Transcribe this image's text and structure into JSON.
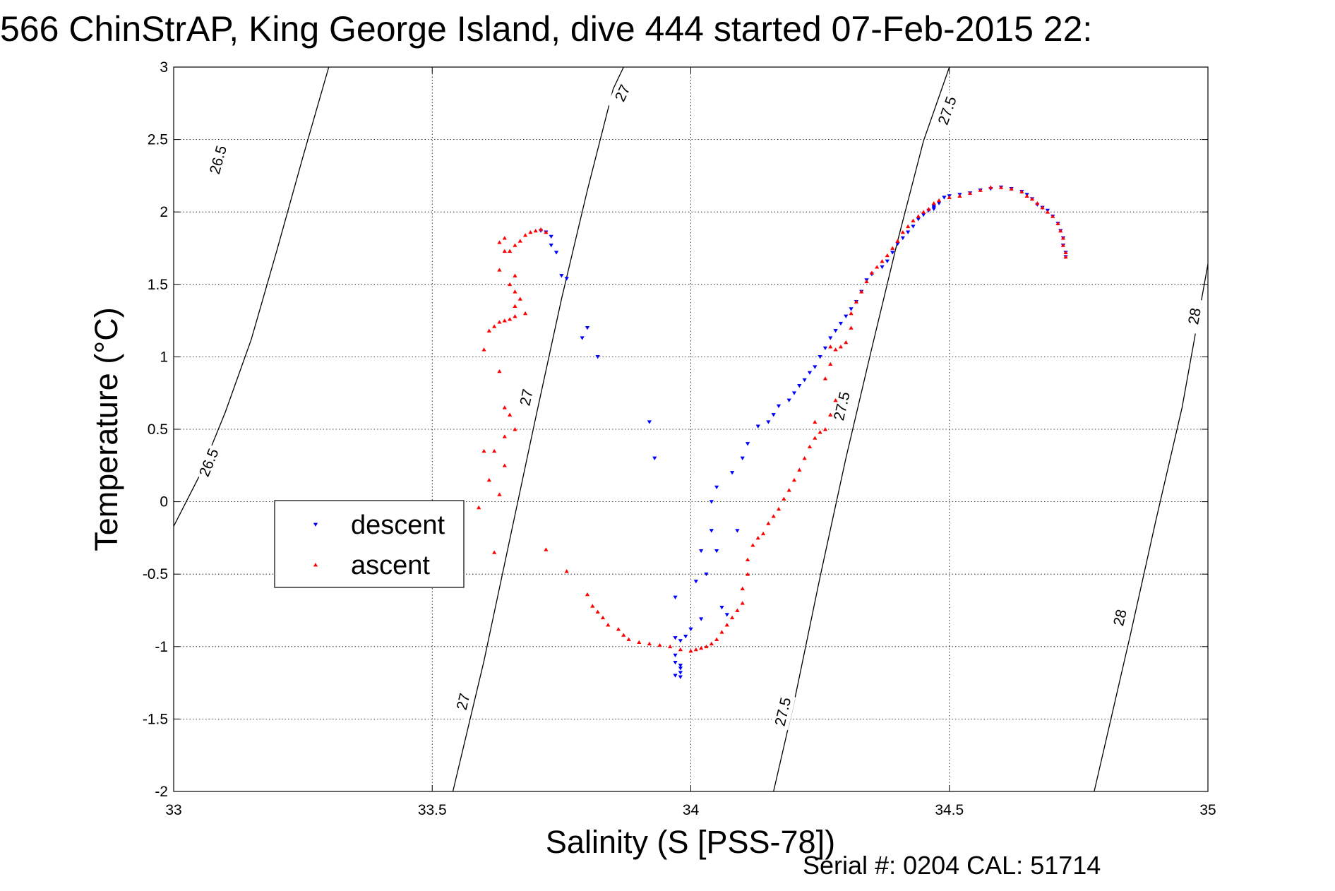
{
  "chart_data": {
    "type": "scatter",
    "title": "566 ChinStrAP, King George Island, dive 444 started 07-Feb-2015 22:",
    "xlabel": "Salinity (S [PSS-78])",
    "ylabel": "Temperature (°C)",
    "footer": "Serial #: 0204  CAL: 51714",
    "xlim": [
      33,
      35
    ],
    "ylim": [
      -2,
      3
    ],
    "grid": true,
    "legend_position": "left-center",
    "x_ticks": [
      {
        "value": 33,
        "label": "33"
      },
      {
        "value": 33.5,
        "label": "33.5"
      },
      {
        "value": 34,
        "label": "34"
      },
      {
        "value": 34.5,
        "label": "34.5"
      },
      {
        "value": 35,
        "label": "35"
      }
    ],
    "y_ticks": [
      {
        "value": 3,
        "label": "3"
      },
      {
        "value": 2.5,
        "label": "2.5"
      },
      {
        "value": 2,
        "label": "2"
      },
      {
        "value": 1.5,
        "label": "1.5"
      },
      {
        "value": 1,
        "label": "1"
      },
      {
        "value": 0.5,
        "label": "0.5"
      },
      {
        "value": 0,
        "label": "0"
      },
      {
        "value": -0.5,
        "label": "-0.5"
      },
      {
        "value": -1,
        "label": "-1"
      },
      {
        "value": -1.5,
        "label": "-1.5"
      },
      {
        "value": -2,
        "label": "-2"
      }
    ],
    "isopycnals": [
      {
        "level": "26.5",
        "points": [
          [
            33.0,
            -0.17
          ],
          [
            33.05,
            0.18
          ],
          [
            33.1,
            0.62
          ],
          [
            33.15,
            1.12
          ],
          [
            33.2,
            1.74
          ],
          [
            33.25,
            2.38
          ],
          [
            33.3,
            3.0
          ]
        ],
        "labels": [
          {
            "x": 33.086,
            "y": 2.36
          },
          {
            "x": 33.068,
            "y": 0.27
          }
        ]
      },
      {
        "level": "27",
        "points": [
          [
            33.54,
            -2.0
          ],
          [
            33.6,
            -1.1
          ],
          [
            33.65,
            -0.26
          ],
          [
            33.7,
            0.58
          ],
          [
            33.75,
            1.4
          ],
          [
            33.8,
            2.15
          ],
          [
            33.85,
            2.85
          ],
          [
            33.87,
            3.0
          ]
        ],
        "labels": [
          {
            "x": 33.868,
            "y": 2.82
          },
          {
            "x": 33.682,
            "y": 0.72
          },
          {
            "x": 33.56,
            "y": -1.38
          }
        ]
      },
      {
        "level": "27.5",
        "points": [
          [
            34.16,
            -2.0
          ],
          [
            34.2,
            -1.38
          ],
          [
            34.25,
            -0.52
          ],
          [
            34.3,
            0.3
          ],
          [
            34.35,
            1.06
          ],
          [
            34.4,
            1.8
          ],
          [
            34.45,
            2.49
          ],
          [
            34.5,
            3.0
          ]
        ],
        "labels": [
          {
            "x": 34.496,
            "y": 2.7
          },
          {
            "x": 34.292,
            "y": 0.66
          },
          {
            "x": 34.178,
            "y": -1.45
          }
        ]
      },
      {
        "level": "28",
        "points": [
          [
            34.78,
            -2.0
          ],
          [
            34.85,
            -0.92
          ],
          [
            34.9,
            -0.12
          ],
          [
            34.95,
            0.65
          ],
          [
            35.0,
            1.64
          ]
        ],
        "labels": [
          {
            "x": 34.974,
            "y": 1.28
          },
          {
            "x": 34.83,
            "y": -0.8
          }
        ]
      }
    ],
    "series": [
      {
        "name": "descent",
        "color": "#0000ff",
        "marker": "triangle-down",
        "points": [
          [
            33.71,
            1.87
          ],
          [
            33.72,
            1.86
          ],
          [
            33.73,
            1.83
          ],
          [
            33.73,
            1.77
          ],
          [
            33.74,
            1.72
          ],
          [
            33.75,
            1.56
          ],
          [
            33.76,
            1.54
          ],
          [
            33.8,
            1.2
          ],
          [
            33.79,
            1.13
          ],
          [
            33.82,
            1.0
          ],
          [
            33.92,
            0.55
          ],
          [
            33.93,
            0.3
          ],
          [
            33.97,
            -0.66
          ],
          [
            33.97,
            -0.94
          ],
          [
            33.98,
            -0.96
          ],
          [
            33.99,
            -0.93
          ],
          [
            33.97,
            -1.06
          ],
          [
            33.97,
            -1.11
          ],
          [
            33.98,
            -1.13
          ],
          [
            33.98,
            -1.15
          ],
          [
            33.98,
            -1.18
          ],
          [
            33.97,
            -1.2
          ],
          [
            33.98,
            -1.21
          ],
          [
            34.0,
            -0.88
          ],
          [
            34.01,
            -0.55
          ],
          [
            34.02,
            -0.81
          ],
          [
            34.03,
            -0.5
          ],
          [
            34.02,
            -0.34
          ],
          [
            34.04,
            -0.2
          ],
          [
            34.05,
            -0.34
          ],
          [
            34.04,
            -0.0
          ],
          [
            34.05,
            0.1
          ],
          [
            34.06,
            -0.73
          ],
          [
            34.07,
            -0.78
          ],
          [
            34.08,
            0.2
          ],
          [
            34.09,
            -0.2
          ],
          [
            34.1,
            0.3
          ],
          [
            34.11,
            0.4
          ],
          [
            34.13,
            0.52
          ],
          [
            34.15,
            0.55
          ],
          [
            34.16,
            0.6
          ],
          [
            34.17,
            0.66
          ],
          [
            34.19,
            0.7
          ],
          [
            34.2,
            0.75
          ],
          [
            34.21,
            0.8
          ],
          [
            34.22,
            0.84
          ],
          [
            34.23,
            0.89
          ],
          [
            34.24,
            0.93
          ],
          [
            34.25,
            1.0
          ],
          [
            34.26,
            1.06
          ],
          [
            34.27,
            1.13
          ],
          [
            34.28,
            1.18
          ],
          [
            34.29,
            1.23
          ],
          [
            34.3,
            1.28
          ],
          [
            34.31,
            1.33
          ],
          [
            34.32,
            1.38
          ],
          [
            34.33,
            1.45
          ],
          [
            34.34,
            1.53
          ],
          [
            34.35,
            1.57
          ],
          [
            34.37,
            1.62
          ],
          [
            34.38,
            1.66
          ],
          [
            34.39,
            1.72
          ],
          [
            34.4,
            1.78
          ],
          [
            34.41,
            1.82
          ],
          [
            34.42,
            1.86
          ],
          [
            34.43,
            1.9
          ],
          [
            34.44,
            1.95
          ],
          [
            34.45,
            1.98
          ],
          [
            34.46,
            2.01
          ],
          [
            34.47,
            2.03
          ],
          [
            34.47,
            2.04
          ],
          [
            34.47,
            2.02
          ],
          [
            34.48,
            2.06
          ],
          [
            34.49,
            2.1
          ],
          [
            34.5,
            2.11
          ],
          [
            34.52,
            2.12
          ],
          [
            34.54,
            2.13
          ],
          [
            34.56,
            2.15
          ],
          [
            34.58,
            2.16
          ],
          [
            34.6,
            2.17
          ],
          [
            34.62,
            2.16
          ],
          [
            34.64,
            2.14
          ],
          [
            34.65,
            2.12
          ],
          [
            34.66,
            2.09
          ],
          [
            34.67,
            2.05
          ],
          [
            34.68,
            2.03
          ],
          [
            34.69,
            2.01
          ],
          [
            34.7,
            1.97
          ],
          [
            34.71,
            1.92
          ],
          [
            34.715,
            1.87
          ],
          [
            34.72,
            1.82
          ],
          [
            34.72,
            1.77
          ],
          [
            34.725,
            1.72
          ],
          [
            34.725,
            1.69
          ]
        ]
      },
      {
        "name": "ascent",
        "color": "#ff0000",
        "marker": "triangle-up",
        "points": [
          [
            33.72,
            1.86
          ],
          [
            33.71,
            1.88
          ],
          [
            33.7,
            1.87
          ],
          [
            33.69,
            1.86
          ],
          [
            33.68,
            1.84
          ],
          [
            33.67,
            1.8
          ],
          [
            33.66,
            1.77
          ],
          [
            33.65,
            1.73
          ],
          [
            33.64,
            1.73
          ],
          [
            33.63,
            1.79
          ],
          [
            33.64,
            1.82
          ],
          [
            33.63,
            1.6
          ],
          [
            33.66,
            1.56
          ],
          [
            33.65,
            1.5
          ],
          [
            33.66,
            1.45
          ],
          [
            33.67,
            1.4
          ],
          [
            33.66,
            1.35
          ],
          [
            33.68,
            1.3
          ],
          [
            33.66,
            1.28
          ],
          [
            33.65,
            1.26
          ],
          [
            33.64,
            1.25
          ],
          [
            33.63,
            1.24
          ],
          [
            33.62,
            1.21
          ],
          [
            33.61,
            1.18
          ],
          [
            33.6,
            1.05
          ],
          [
            33.63,
            0.9
          ],
          [
            33.64,
            0.65
          ],
          [
            33.65,
            0.6
          ],
          [
            33.66,
            0.5
          ],
          [
            33.64,
            0.45
          ],
          [
            33.62,
            0.35
          ],
          [
            33.6,
            0.35
          ],
          [
            33.64,
            0.25
          ],
          [
            33.61,
            0.15
          ],
          [
            33.63,
            0.05
          ],
          [
            33.59,
            -0.04
          ],
          [
            33.62,
            -0.35
          ],
          [
            33.72,
            -0.33
          ],
          [
            33.76,
            -0.48
          ],
          [
            33.8,
            -0.64
          ],
          [
            33.81,
            -0.72
          ],
          [
            33.82,
            -0.76
          ],
          [
            33.83,
            -0.8
          ],
          [
            33.84,
            -0.85
          ],
          [
            33.86,
            -0.88
          ],
          [
            33.87,
            -0.92
          ],
          [
            33.88,
            -0.95
          ],
          [
            33.9,
            -0.97
          ],
          [
            33.92,
            -0.98
          ],
          [
            33.94,
            -0.99
          ],
          [
            33.96,
            -1.0
          ],
          [
            33.98,
            -1.02
          ],
          [
            34.0,
            -1.03
          ],
          [
            34.01,
            -1.02
          ],
          [
            34.02,
            -1.01
          ],
          [
            34.03,
            -1.0
          ],
          [
            34.04,
            -0.98
          ],
          [
            34.05,
            -0.95
          ],
          [
            34.06,
            -0.9
          ],
          [
            34.07,
            -0.85
          ],
          [
            34.08,
            -0.8
          ],
          [
            34.09,
            -0.75
          ],
          [
            34.1,
            -0.7
          ],
          [
            34.1,
            -0.6
          ],
          [
            34.11,
            -0.5
          ],
          [
            34.11,
            -0.4
          ],
          [
            34.12,
            -0.3
          ],
          [
            34.13,
            -0.25
          ],
          [
            34.14,
            -0.22
          ],
          [
            34.15,
            -0.15
          ],
          [
            34.16,
            -0.1
          ],
          [
            34.17,
            -0.05
          ],
          [
            34.18,
            0.02
          ],
          [
            34.19,
            0.08
          ],
          [
            34.2,
            0.15
          ],
          [
            34.21,
            0.22
          ],
          [
            34.22,
            0.3
          ],
          [
            34.23,
            0.38
          ],
          [
            34.24,
            0.44
          ],
          [
            34.25,
            0.48
          ],
          [
            34.26,
            0.5
          ],
          [
            34.24,
            0.55
          ],
          [
            34.27,
            0.6
          ],
          [
            34.28,
            0.7
          ],
          [
            34.26,
            0.85
          ],
          [
            34.27,
            0.95
          ],
          [
            34.28,
            1.05
          ],
          [
            34.27,
            1.07
          ],
          [
            34.29,
            1.07
          ],
          [
            34.3,
            1.1
          ],
          [
            34.31,
            1.2
          ],
          [
            34.31,
            1.3
          ],
          [
            34.32,
            1.38
          ],
          [
            34.33,
            1.45
          ],
          [
            34.34,
            1.52
          ],
          [
            34.35,
            1.58
          ],
          [
            34.36,
            1.62
          ],
          [
            34.37,
            1.66
          ],
          [
            34.38,
            1.7
          ],
          [
            34.39,
            1.75
          ],
          [
            34.4,
            1.8
          ],
          [
            34.41,
            1.86
          ],
          [
            34.42,
            1.9
          ],
          [
            34.43,
            1.94
          ],
          [
            34.44,
            1.97
          ],
          [
            34.45,
            2.0
          ],
          [
            34.46,
            2.02
          ],
          [
            34.47,
            2.06
          ],
          [
            34.48,
            2.08
          ],
          [
            34.5,
            2.1
          ],
          [
            34.52,
            2.11
          ],
          [
            34.54,
            2.13
          ],
          [
            34.56,
            2.15
          ],
          [
            34.58,
            2.17
          ],
          [
            34.6,
            2.17
          ],
          [
            34.62,
            2.16
          ],
          [
            34.64,
            2.14
          ],
          [
            34.65,
            2.11
          ],
          [
            34.66,
            2.09
          ],
          [
            34.67,
            2.06
          ],
          [
            34.68,
            2.03
          ],
          [
            34.69,
            2.0
          ],
          [
            34.7,
            1.97
          ],
          [
            34.71,
            1.92
          ],
          [
            34.715,
            1.87
          ],
          [
            34.72,
            1.82
          ],
          [
            34.72,
            1.77
          ],
          [
            34.725,
            1.72
          ],
          [
            34.725,
            1.69
          ]
        ]
      }
    ]
  }
}
